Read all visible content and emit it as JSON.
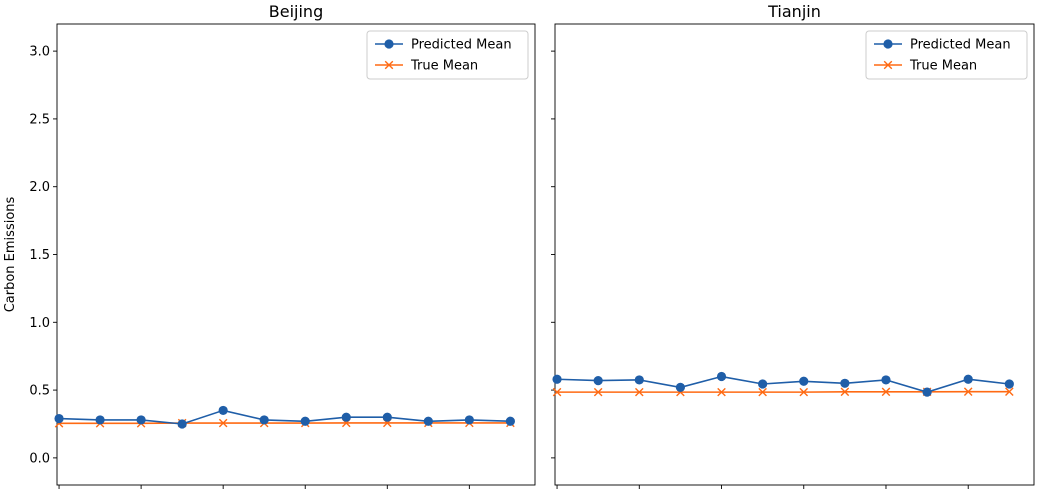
{
  "chart_data": {
    "type": "line",
    "ylabel": "Carbon Emissions",
    "ylim": [
      -0.2,
      3.2
    ],
    "yticks": [
      "0.0",
      "0.5",
      "1.0",
      "1.5",
      "2.0",
      "2.5",
      "3.0"
    ],
    "ytick_values": [
      0.0,
      0.5,
      1.0,
      1.5,
      2.0,
      2.5,
      3.0
    ],
    "x": [
      1,
      2,
      3,
      4,
      5,
      6,
      7,
      8,
      9,
      10,
      11,
      12
    ],
    "xlim": [
      0.95,
      12.6
    ],
    "xtick_positions": [
      1,
      3,
      5,
      7,
      9,
      11
    ],
    "sharey": true,
    "legend_position": "upper right",
    "colors": {
      "predicted": "#1f5ea8",
      "true": "#ff6a13"
    },
    "panels": [
      {
        "title": "Beijing",
        "legend": [
          "Predicted Mean",
          "True Mean"
        ],
        "series": [
          {
            "name": "Predicted Mean",
            "marker": "circle",
            "values": [
              0.29,
              0.28,
              0.28,
              0.25,
              0.35,
              0.28,
              0.27,
              0.3,
              0.3,
              0.27,
              0.28,
              0.27
            ]
          },
          {
            "name": "True Mean",
            "marker": "x",
            "values": [
              0.255,
              0.255,
              0.255,
              0.257,
              0.257,
              0.257,
              0.257,
              0.258,
              0.258,
              0.258,
              0.258,
              0.258
            ]
          }
        ]
      },
      {
        "title": "Tianjin",
        "legend": [
          "Predicted Mean",
          "True Mean"
        ],
        "series": [
          {
            "name": "Predicted Mean",
            "marker": "circle",
            "values": [
              0.58,
              0.57,
              0.575,
              0.52,
              0.6,
              0.545,
              0.565,
              0.55,
              0.575,
              0.485,
              0.58,
              0.545
            ]
          },
          {
            "name": "True Mean",
            "marker": "x",
            "values": [
              0.485,
              0.485,
              0.485,
              0.485,
              0.485,
              0.485,
              0.485,
              0.487,
              0.487,
              0.487,
              0.488,
              0.488
            ]
          }
        ]
      }
    ]
  }
}
